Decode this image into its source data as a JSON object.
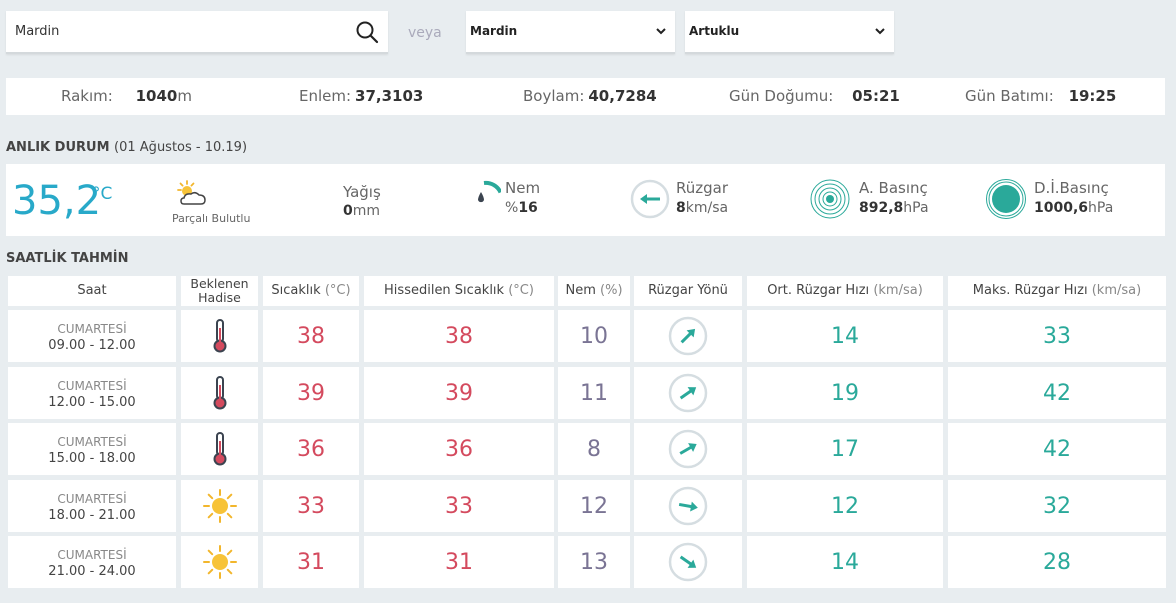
{
  "search": {
    "value": "Mardin",
    "separator": "veya"
  },
  "selects": {
    "city": "Mardin",
    "district": "Artuklu"
  },
  "info": {
    "altitude_label": "Rakım:",
    "altitude_value": "1040",
    "altitude_unit": "m",
    "lat_label": "Enlem:",
    "lat_value": "37,3103",
    "lon_label": "Boylam:",
    "lon_value": "40,7284",
    "sunrise_label": "Gün Doğumu:",
    "sunrise_value": "05:21",
    "sunset_label": "Gün Batımı:",
    "sunset_value": "19:25"
  },
  "current": {
    "title": "ANLIK DURUM",
    "title_date": "(01 Ağustos - 10.19)",
    "temp": "35,2",
    "temp_unit": "°C",
    "condition": "Parçalı Bulutlu",
    "rain_label": "Yağış",
    "rain_value": "0",
    "rain_unit": "mm",
    "humidity_label": "Nem",
    "humidity_prefix": "%",
    "humidity_value": "16",
    "humidity_fraction": 0.16,
    "wind_label": "Rüzgar",
    "wind_value": "8",
    "wind_unit": "km/sa",
    "pressure_label": "A. Basınç",
    "pressure_value": "892,8",
    "pressure_unit": "hPa",
    "sea_pressure_label": "D.İ.Basınç",
    "sea_pressure_value": "1000,6",
    "sea_pressure_unit": "hPa"
  },
  "hourly": {
    "title": "SAATLİK TAHMİN",
    "headers": {
      "time": "Saat",
      "event_1": "Beklenen",
      "event_2": "Hadise",
      "temp": "Sıcaklık",
      "temp_unit": "(°C)",
      "feels": "Hissedilen Sıcaklık",
      "feels_unit": "(°C)",
      "humidity": "Nem",
      "humidity_unit": "(%)",
      "wind_dir": "Rüzgar Yönü",
      "wind_avg": "Ort. Rüzgar Hızı",
      "wind_avg_unit": "(km/sa)",
      "wind_max": "Maks. Rüzgar Hızı",
      "wind_max_unit": "(km/sa)"
    },
    "rows": [
      {
        "day": "CUMARTESİ",
        "hours": "09.00 - 12.00",
        "icon": "thermometer-icon",
        "temp": "38",
        "feels": "38",
        "humidity": "10",
        "wind_dir_deg": 45,
        "wind_avg": "14",
        "wind_max": "33"
      },
      {
        "day": "CUMARTESİ",
        "hours": "12.00 - 15.00",
        "icon": "thermometer-icon",
        "temp": "39",
        "feels": "39",
        "humidity": "11",
        "wind_dir_deg": 55,
        "wind_avg": "19",
        "wind_max": "42"
      },
      {
        "day": "CUMARTESİ",
        "hours": "15.00 - 18.00",
        "icon": "thermometer-icon",
        "temp": "36",
        "feels": "36",
        "humidity": "8",
        "wind_dir_deg": 60,
        "wind_avg": "17",
        "wind_max": "42"
      },
      {
        "day": "CUMARTESİ",
        "hours": "18.00 - 21.00",
        "icon": "sun-icon",
        "temp": "33",
        "feels": "33",
        "humidity": "12",
        "wind_dir_deg": 100,
        "wind_avg": "12",
        "wind_max": "32"
      },
      {
        "day": "CUMARTESİ",
        "hours": "21.00 - 24.00",
        "icon": "sun-icon",
        "temp": "31",
        "feels": "31",
        "humidity": "13",
        "wind_dir_deg": 125,
        "wind_avg": "14",
        "wind_max": "28"
      }
    ]
  },
  "colors": {
    "temp": "#d44a5e",
    "humidity": "#7a7494",
    "wind": "#2aa99a",
    "accent": "#28a9c9"
  }
}
